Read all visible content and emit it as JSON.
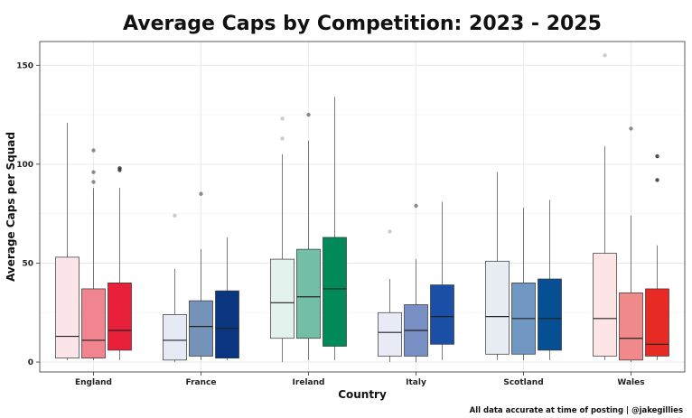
{
  "chart_data": {
    "type": "boxplot",
    "title": "Average Caps by Competition: 2023 - 2025",
    "xlabel": "Country",
    "ylabel": "Average Caps per Squad",
    "caption": "All data accurate at time of posting | @jakegillies",
    "ylim": [
      -5,
      162
    ],
    "yticks": [
      0,
      50,
      100,
      150
    ],
    "grid": true,
    "legend": "none",
    "categories": [
      "England",
      "France",
      "Ireland",
      "Italy",
      "Scotland",
      "Wales"
    ],
    "groups": [
      {
        "category": "England",
        "boxes": [
          {
            "color": "#fbe5e8",
            "min": 1,
            "q1": 2,
            "median": 13,
            "q3": 53,
            "max": 121,
            "outliers": []
          },
          {
            "color": "#f08590",
            "min": 1,
            "q1": 2,
            "median": 11,
            "q3": 37,
            "max": 88,
            "outliers": [
              91,
              96,
              107
            ]
          },
          {
            "color": "#e8203a",
            "min": 1,
            "q1": 6,
            "median": 16,
            "q3": 40,
            "max": 88,
            "outliers": [
              97,
              98
            ]
          }
        ]
      },
      {
        "category": "France",
        "boxes": [
          {
            "color": "#e5eaf4",
            "min": 0,
            "q1": 1,
            "median": 11,
            "q3": 24,
            "max": 47,
            "outliers": [
              74
            ]
          },
          {
            "color": "#7592b8",
            "min": 1,
            "q1": 3,
            "median": 18,
            "q3": 31,
            "max": 57,
            "outliers": [
              85
            ]
          },
          {
            "color": "#0a3580",
            "min": 1,
            "q1": 2,
            "median": 17,
            "q3": 36,
            "max": 63,
            "outliers": []
          }
        ]
      },
      {
        "category": "Ireland",
        "boxes": [
          {
            "color": "#e4f2ee",
            "min": 0,
            "q1": 12,
            "median": 30,
            "q3": 52,
            "max": 105,
            "outliers": [
              113,
              123
            ]
          },
          {
            "color": "#73bea6",
            "min": 1,
            "q1": 12,
            "median": 33,
            "q3": 57,
            "max": 112,
            "outliers": [
              125
            ]
          },
          {
            "color": "#008a5a",
            "min": 1,
            "q1": 8,
            "median": 37,
            "q3": 63,
            "max": 134,
            "outliers": []
          }
        ]
      },
      {
        "category": "Italy",
        "boxes": [
          {
            "color": "#e8ebf5",
            "min": 0,
            "q1": 3,
            "median": 15,
            "q3": 25,
            "max": 42,
            "outliers": [
              66
            ]
          },
          {
            "color": "#7890c4",
            "min": 0,
            "q1": 3,
            "median": 16,
            "q3": 29,
            "max": 52,
            "outliers": [
              79
            ]
          },
          {
            "color": "#1b4fa6",
            "min": 1,
            "q1": 9,
            "median": 23,
            "q3": 39,
            "max": 81,
            "outliers": []
          }
        ]
      },
      {
        "category": "Scotland",
        "boxes": [
          {
            "color": "#e8edf4",
            "min": 1,
            "q1": 4,
            "median": 23,
            "q3": 51,
            "max": 96,
            "outliers": []
          },
          {
            "color": "#6f97c2",
            "min": 1,
            "q1": 4,
            "median": 22,
            "q3": 40,
            "max": 78,
            "outliers": []
          },
          {
            "color": "#064f93",
            "min": 1,
            "q1": 6,
            "median": 22,
            "q3": 42,
            "max": 82,
            "outliers": []
          }
        ]
      },
      {
        "category": "Wales",
        "boxes": [
          {
            "color": "#fde5e6",
            "min": 1,
            "q1": 3,
            "median": 22,
            "q3": 55,
            "max": 109,
            "outliers": [
              155
            ]
          },
          {
            "color": "#f08a8a",
            "min": 0,
            "q1": 1,
            "median": 12,
            "q3": 35,
            "max": 74,
            "outliers": [
              118
            ]
          },
          {
            "color": "#e82a24",
            "min": 1,
            "q1": 3,
            "median": 9,
            "q3": 37,
            "max": 59,
            "outliers": [
              92,
              104
            ]
          }
        ]
      }
    ]
  }
}
